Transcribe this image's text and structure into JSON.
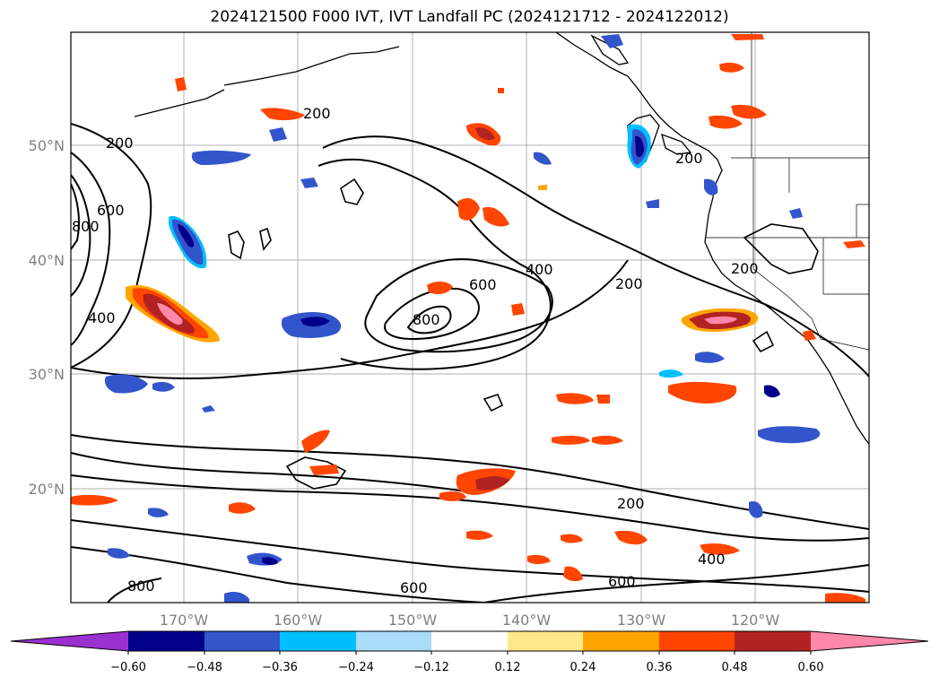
{
  "title": "2024121500 F000 IVT, IVT Landfall PC (2024121712 - 2024122012)",
  "latitude_labels": [
    "50°N",
    "40°N",
    "30°N",
    "20°N"
  ],
  "longitude_labels": [
    "170°W",
    "160°W",
    "150°W",
    "140°W",
    "130°W",
    "120°W"
  ],
  "contour_labels": [
    "200",
    "200",
    "200",
    "200",
    "200",
    "200",
    "400",
    "400",
    "400",
    "600",
    "600",
    "600",
    "600",
    "800",
    "800",
    "800"
  ],
  "colorbar": {
    "ticks": [
      "−0.60",
      "−0.48",
      "−0.36",
      "−0.24",
      "−0.12",
      "0.12",
      "0.24",
      "0.36",
      "0.48",
      "0.60"
    ],
    "colors": [
      "#9b30d0",
      "#00008b",
      "#3355cc",
      "#00bfff",
      "#a8dcf7",
      "#ffffff",
      "#fde98b",
      "#ffa500",
      "#ff4500",
      "#b22222",
      "#ff88aa"
    ]
  }
}
